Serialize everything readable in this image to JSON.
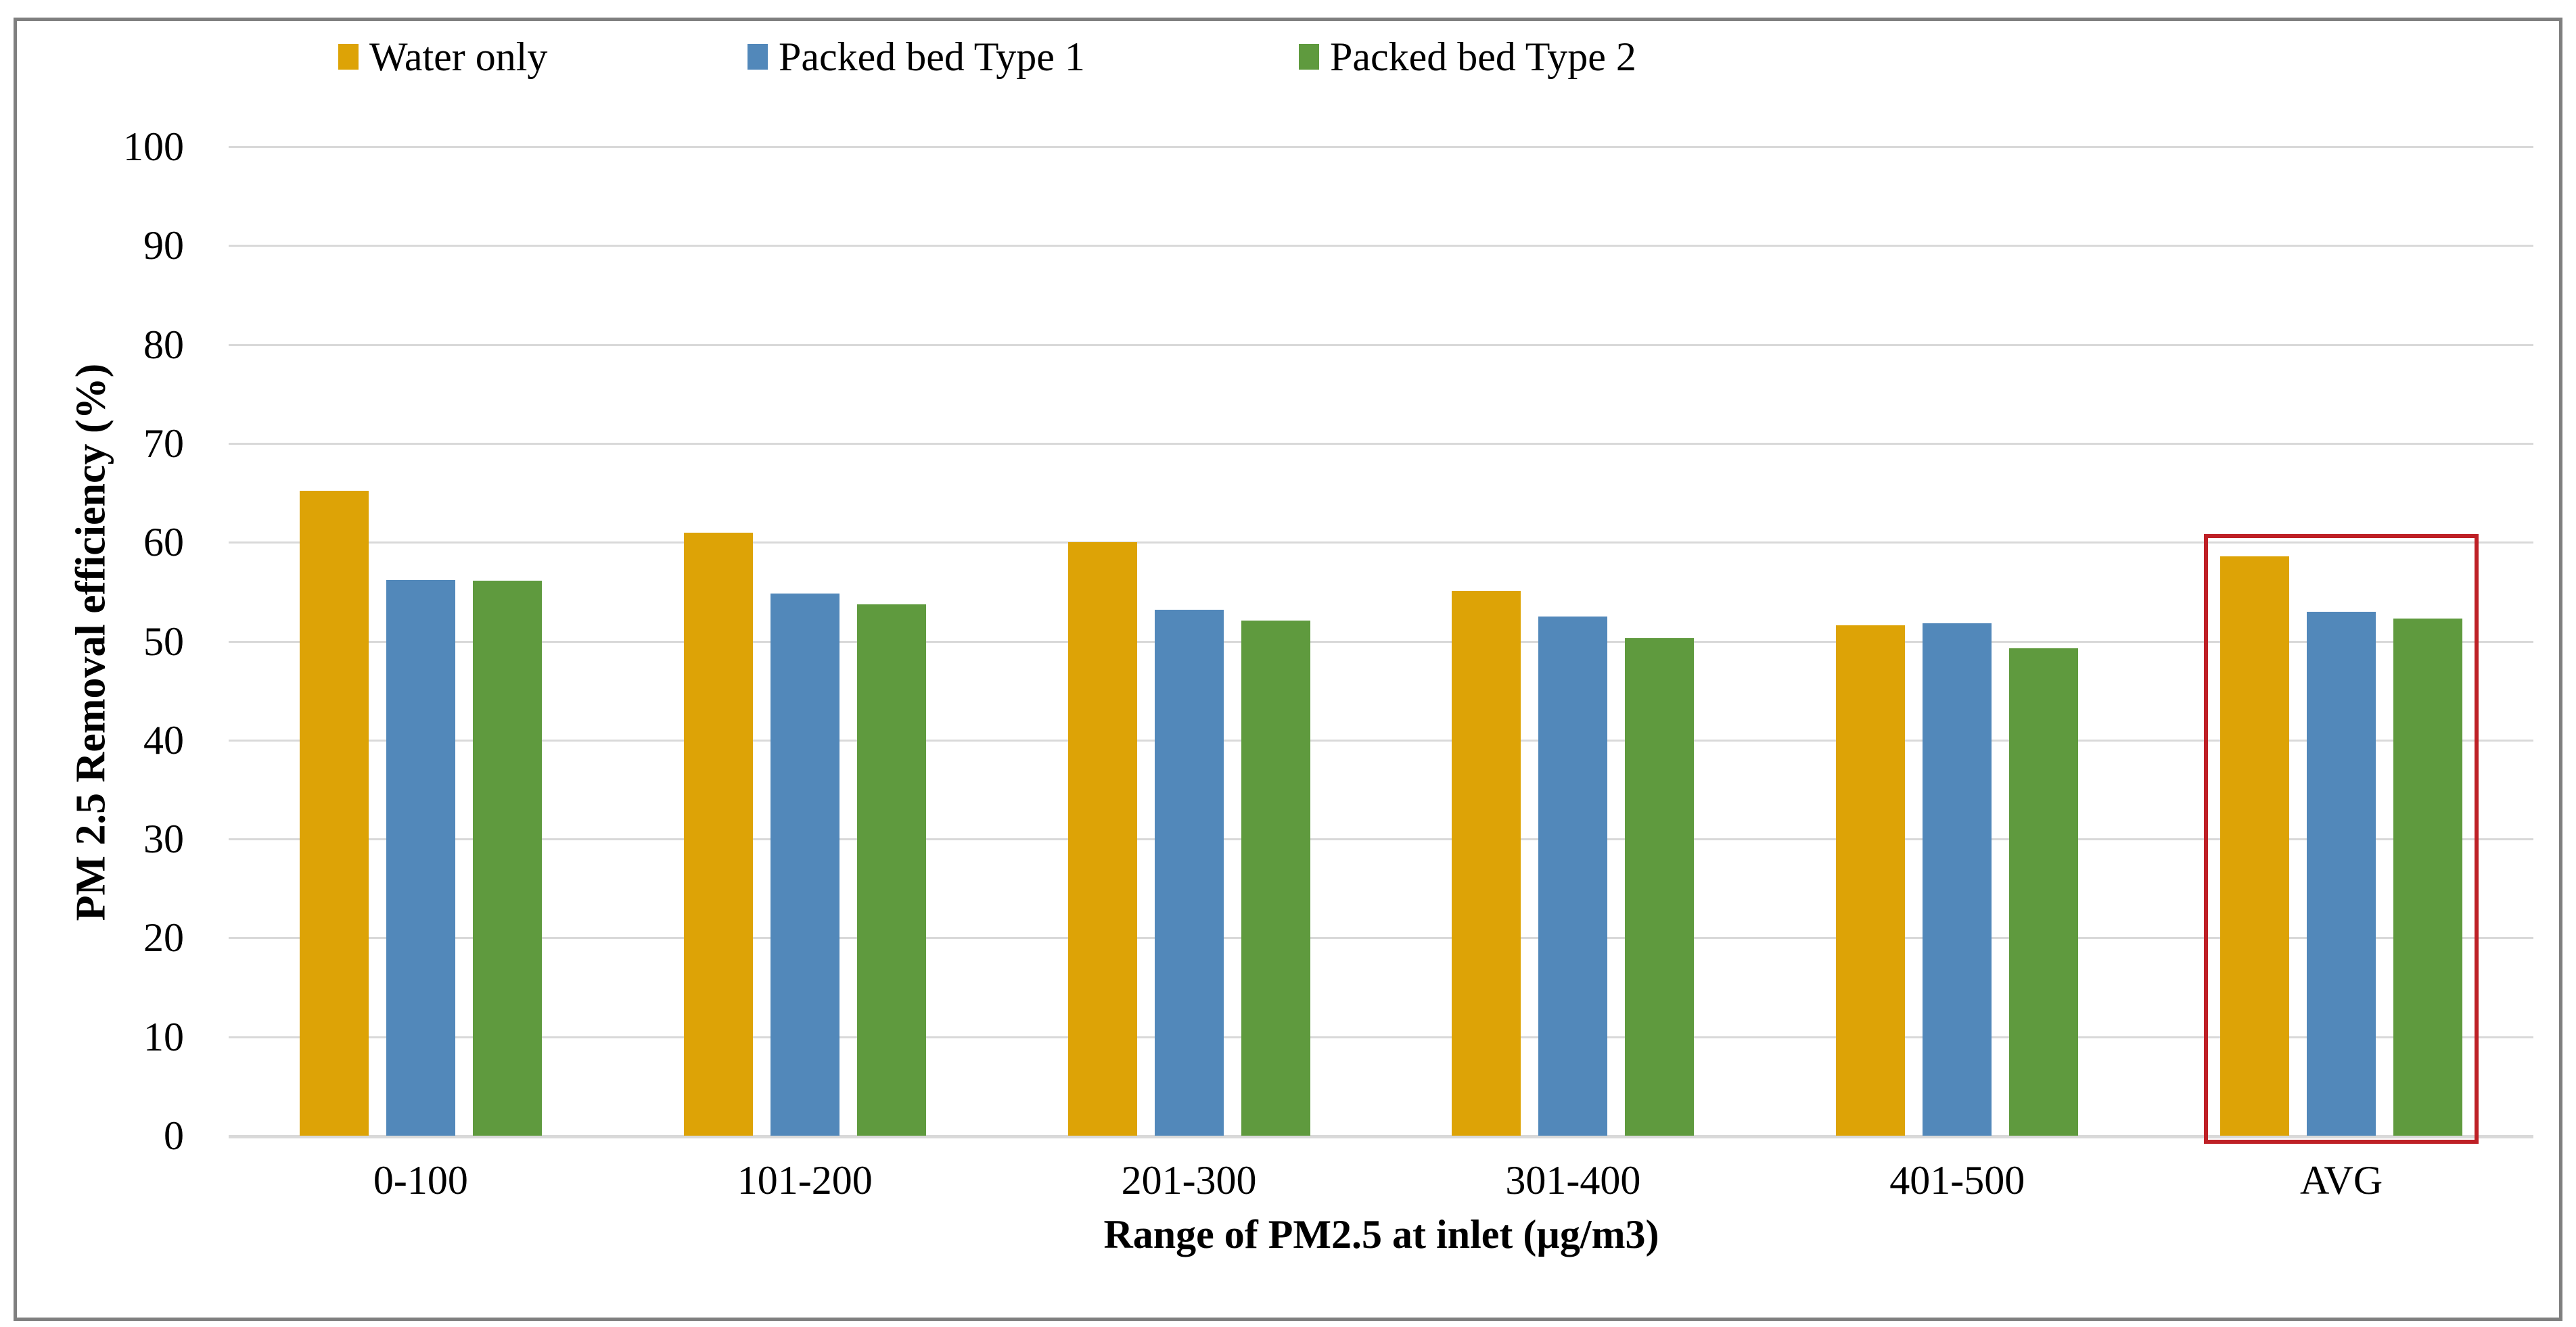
{
  "chart_data": {
    "type": "bar",
    "title": "",
    "categories": [
      "0-100",
      "101-200",
      "201-300",
      "301-400",
      "401-500",
      "AVG"
    ],
    "series": [
      {
        "name": "Water only",
        "color": "#dda306",
        "values": [
          65.2,
          61.0,
          60.0,
          55.1,
          51.6,
          58.6
        ]
      },
      {
        "name": "Packed bed Type 1",
        "color": "#5288ba",
        "values": [
          56.2,
          54.8,
          53.2,
          52.5,
          51.8,
          53.0
        ]
      },
      {
        "name": "Packed bed Type 2",
        "color": "#5f9a3e",
        "values": [
          56.1,
          53.7,
          52.1,
          50.3,
          49.3,
          52.3
        ]
      }
    ],
    "xlabel": "Range of PM2.5 at inlet (µg/m3)",
    "ylabel": "PM 2.5 Removal efficiency (%)",
    "ylim": [
      0,
      100
    ],
    "yticks": [
      0,
      10,
      20,
      30,
      40,
      50,
      60,
      70,
      80,
      90,
      100
    ],
    "grid": "horizontal",
    "gridline_color": "#d9d9d9",
    "frame_color": "#7f7f7f",
    "legend_position": "top",
    "highlight": {
      "category": "AVG",
      "shape": "box",
      "color": "#be2026",
      "note": "red rectangle around AVG group"
    }
  }
}
